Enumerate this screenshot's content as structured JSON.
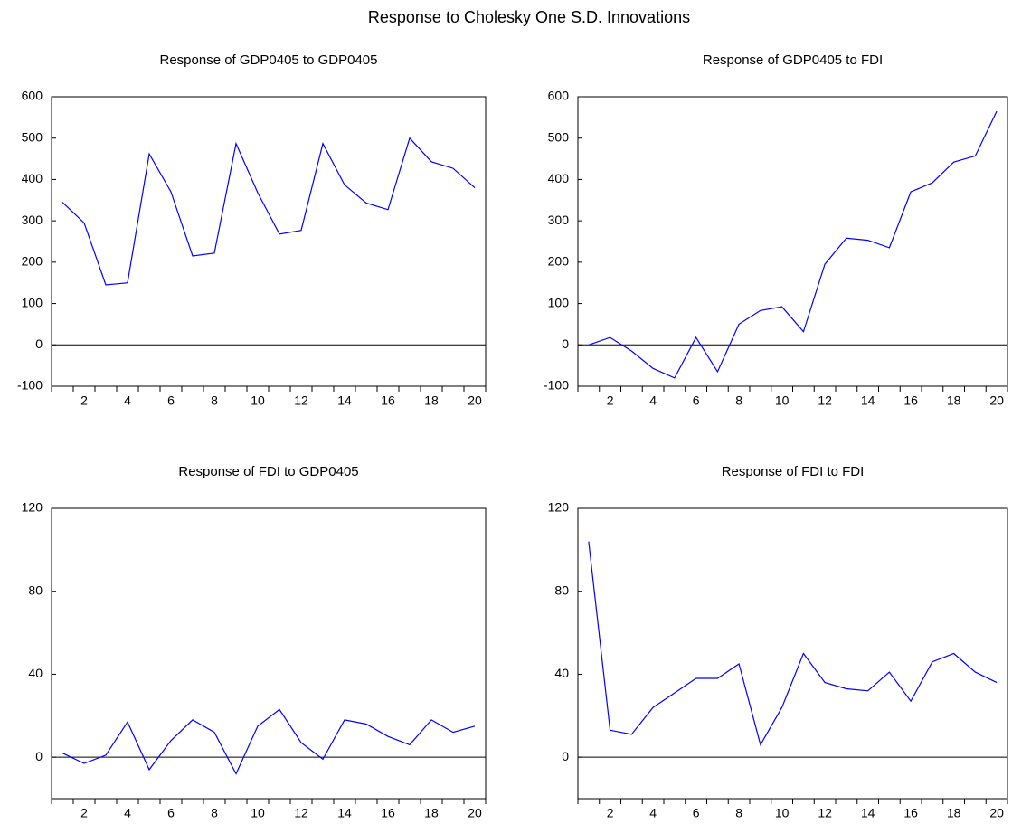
{
  "title": "Response to Cholesky One S.D. Innovations",
  "chart_data": [
    {
      "type": "line",
      "title": "Response of GDP0405 to GDP0405",
      "categories": [
        null,
        2,
        null,
        4,
        null,
        6,
        null,
        8,
        null,
        10,
        null,
        12,
        null,
        14,
        null,
        16,
        null,
        18,
        null,
        20
      ],
      "values": [
        345,
        295,
        145,
        150,
        462,
        370,
        215,
        222,
        487,
        368,
        268,
        277,
        487,
        387,
        343,
        327,
        500,
        443,
        427,
        380
      ],
      "color": "#0000ff",
      "ylim": [
        -100,
        600
      ],
      "yticks": [
        -100,
        0,
        100,
        200,
        300,
        400,
        500,
        600
      ],
      "zero_line": true
    },
    {
      "type": "line",
      "title": "Response of GDP0405 to FDI",
      "categories": [
        null,
        2,
        null,
        4,
        null,
        6,
        null,
        8,
        null,
        10,
        null,
        12,
        null,
        14,
        null,
        16,
        null,
        18,
        null,
        20
      ],
      "values": [
        0,
        18,
        -15,
        -57,
        -80,
        18,
        -65,
        50,
        83,
        92,
        32,
        195,
        258,
        253,
        235,
        370,
        392,
        442,
        457,
        565
      ],
      "color": "#0000ff",
      "ylim": [
        -100,
        600
      ],
      "yticks": [
        -100,
        0,
        100,
        200,
        300,
        400,
        500,
        600
      ],
      "zero_line": true
    },
    {
      "type": "line",
      "title": "Response of FDI to GDP0405",
      "categories": [
        null,
        2,
        null,
        4,
        null,
        6,
        null,
        8,
        null,
        10,
        null,
        12,
        null,
        14,
        null,
        16,
        null,
        18,
        null,
        20
      ],
      "values": [
        2,
        -3,
        1,
        17,
        -6,
        8,
        18,
        12,
        -8,
        15,
        23,
        7,
        -1,
        18,
        16,
        10,
        6,
        18,
        12,
        15
      ],
      "color": "#0000ff",
      "ylim": [
        -20,
        120
      ],
      "yticks": [
        0,
        40,
        80,
        120
      ],
      "zero_line": true
    },
    {
      "type": "line",
      "title": "Response of FDI to FDI",
      "categories": [
        null,
        2,
        null,
        4,
        null,
        6,
        null,
        8,
        null,
        10,
        null,
        12,
        null,
        14,
        null,
        16,
        null,
        18,
        null,
        20
      ],
      "values": [
        104,
        13,
        11,
        24,
        31,
        38,
        38,
        45,
        6,
        24,
        50,
        36,
        33,
        32,
        41,
        27,
        46,
        50,
        41,
        36
      ],
      "color": "#0000ff",
      "ylim": [
        -20,
        120
      ],
      "yticks": [
        0,
        40,
        80,
        120
      ],
      "zero_line": true
    }
  ]
}
